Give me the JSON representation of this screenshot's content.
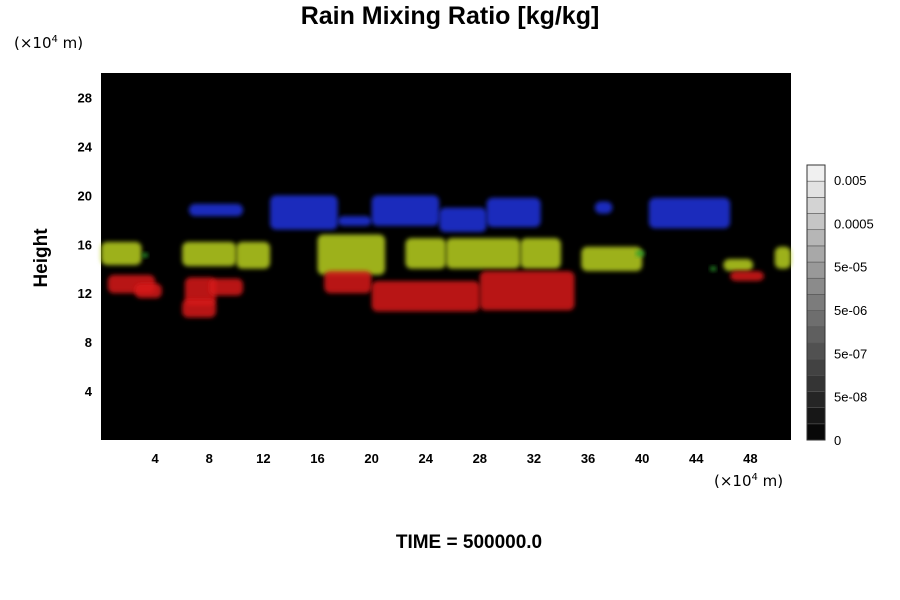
{
  "chart_data": {
    "type": "heatmap",
    "title": "Rain Mixing Ratio [kg/kg]",
    "ylabel": "Height",
    "xlabel": "",
    "y_unit": "(×10⁴ m)",
    "x_unit": "(×10⁴ m)",
    "unit_text": {
      "pre": "(×10",
      "exp": "4",
      "post": " m)"
    },
    "xlim": [
      0,
      51
    ],
    "ylim": [
      0,
      30
    ],
    "x_ticks": [
      "4",
      "8",
      "12",
      "16",
      "20",
      "24",
      "28",
      "32",
      "36",
      "40",
      "44",
      "48"
    ],
    "x_tick_values": [
      4,
      8,
      12,
      16,
      20,
      24,
      28,
      32,
      36,
      40,
      44,
      48
    ],
    "y_ticks": [
      "4",
      "8",
      "12",
      "16",
      "20",
      "24",
      "28"
    ],
    "y_tick_values": [
      4,
      8,
      12,
      16,
      20,
      24,
      28
    ],
    "colorbar": {
      "labels": [
        "0.005",
        "0.0005",
        "5e-05",
        "5e-06",
        "5e-07",
        "5e-08",
        "0"
      ],
      "levels": 17
    },
    "background_color": "#000000",
    "series": [
      {
        "color": "#2233dd",
        "regions": [
          [
            [
              6.5,
              19.3
            ],
            [
              10.5,
              18.3
            ]
          ],
          [
            [
              12.5,
              20.0
            ],
            [
              17.5,
              17.2
            ]
          ],
          [
            [
              17.5,
              18.3
            ],
            [
              20.0,
              17.5
            ]
          ],
          [
            [
              20.0,
              20.0
            ],
            [
              25.0,
              17.5
            ]
          ],
          [
            [
              25.0,
              19.0
            ],
            [
              28.5,
              17.0
            ]
          ],
          [
            [
              28.5,
              19.8
            ],
            [
              32.5,
              17.4
            ]
          ],
          [
            [
              36.5,
              19.5
            ],
            [
              37.8,
              18.5
            ]
          ],
          [
            [
              40.5,
              19.8
            ],
            [
              46.5,
              17.3
            ]
          ]
        ]
      },
      {
        "color": "#b8d020",
        "regions": [
          [
            [
              0.0,
              16.2
            ],
            [
              3.0,
              14.3
            ]
          ],
          [
            [
              6.0,
              16.2
            ],
            [
              10.0,
              14.2
            ]
          ],
          [
            [
              10.0,
              16.2
            ],
            [
              12.5,
              14.0
            ]
          ],
          [
            [
              16.0,
              16.8
            ],
            [
              21.0,
              13.5
            ]
          ],
          [
            [
              22.5,
              16.5
            ],
            [
              25.5,
              14.0
            ]
          ],
          [
            [
              25.5,
              16.5
            ],
            [
              31.0,
              14.0
            ]
          ],
          [
            [
              31.0,
              16.5
            ],
            [
              34.0,
              14.0
            ]
          ],
          [
            [
              35.5,
              15.8
            ],
            [
              40.0,
              13.8
            ]
          ],
          [
            [
              46.0,
              14.8
            ],
            [
              48.2,
              13.8
            ]
          ],
          [
            [
              49.8,
              15.8
            ],
            [
              51.0,
              14.0
            ]
          ]
        ]
      },
      {
        "color": "#d81818",
        "regions": [
          [
            [
              0.5,
              13.5
            ],
            [
              4.0,
              12.0
            ]
          ],
          [
            [
              2.5,
              12.8
            ],
            [
              4.5,
              11.6
            ]
          ],
          [
            [
              6.2,
              13.3
            ],
            [
              8.5,
              11.0
            ]
          ],
          [
            [
              6.0,
              11.5
            ],
            [
              8.5,
              10.0
            ]
          ],
          [
            [
              8.0,
              13.2
            ],
            [
              10.5,
              11.8
            ]
          ],
          [
            [
              16.5,
              13.8
            ],
            [
              20.0,
              12.0
            ]
          ],
          [
            [
              20.0,
              13.0
            ],
            [
              28.0,
              10.5
            ]
          ],
          [
            [
              28.0,
              13.8
            ],
            [
              35.0,
              10.6
            ]
          ],
          [
            [
              46.5,
              13.8
            ],
            [
              49.0,
              13.0
            ]
          ]
        ]
      },
      {
        "color": "#2ca02c",
        "regions": [
          [
            [
              3.0,
              15.3
            ],
            [
              3.5,
              14.9
            ]
          ],
          [
            [
              39.5,
              15.5
            ],
            [
              40.2,
              15.0
            ]
          ],
          [
            [
              45.0,
              14.2
            ],
            [
              45.5,
              13.8
            ]
          ]
        ]
      }
    ]
  },
  "footer": "TIME = 500000.0"
}
